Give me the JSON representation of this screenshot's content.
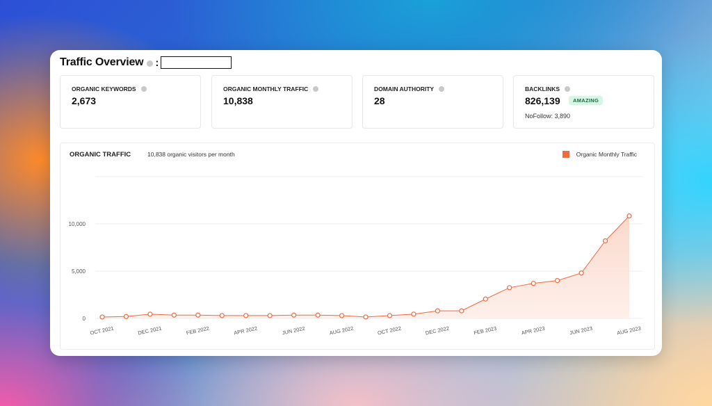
{
  "header": {
    "title": "Traffic Overview",
    "separator": ":"
  },
  "metrics": [
    {
      "label": "ORGANIC KEYWORDS",
      "value": "2,673"
    },
    {
      "label": "ORGANIC MONTHLY TRAFFIC",
      "value": "10,838"
    },
    {
      "label": "DOMAIN AUTHORITY",
      "value": "28"
    },
    {
      "label": "BACKLINKS",
      "value": "826,139",
      "badge": "AMAZING",
      "subvalue": "NoFollow: 3,890"
    }
  ],
  "colors": {
    "accent": "#ee6a40",
    "badge_bg": "#d8f5e6",
    "badge_text": "#1c6b45"
  },
  "chart_data": {
    "type": "area",
    "title": "ORGANIC TRAFFIC",
    "subtitle": "10,838 organic visitors per month",
    "legend_position": "top-right",
    "grid": true,
    "ylim": [
      0,
      15000
    ],
    "yticks": [
      {
        "value": 0,
        "label": "0"
      },
      {
        "value": 5000,
        "label": "5,000"
      },
      {
        "value": 10000,
        "label": "10,000"
      }
    ],
    "x": [
      "OCT 2021",
      "NOV 2021",
      "DEC 2021",
      "JAN 2022",
      "FEB 2022",
      "MAR 2022",
      "APR 2022",
      "MAY 2022",
      "JUN 2022",
      "JUL 2022",
      "AUG 2022",
      "SEP 2022",
      "OCT 2022",
      "NOV 2022",
      "DEC 2022",
      "JAN 2023",
      "FEB 2023",
      "MAR 2023",
      "APR 2023",
      "MAY 2023",
      "JUN 2023",
      "JUL 2023",
      "AUG 2023"
    ],
    "xtick_labels": [
      "OCT 2021",
      "",
      "DEC 2021",
      "",
      "FEB 2022",
      "",
      "APR 2022",
      "",
      "JUN 2022",
      "",
      "AUG 2022",
      "",
      "OCT 2022",
      "",
      "DEC 2022",
      "",
      "FEB 2023",
      "",
      "APR 2023",
      "",
      "JUN 2023",
      "",
      "AUG 2023"
    ],
    "series": [
      {
        "name": "Organic Monthly Traffic",
        "values": [
          150,
          200,
          450,
          350,
          350,
          300,
          300,
          300,
          350,
          350,
          300,
          150,
          300,
          450,
          800,
          800,
          2050,
          3250,
          3700,
          4000,
          4800,
          8200,
          10838
        ]
      }
    ]
  }
}
